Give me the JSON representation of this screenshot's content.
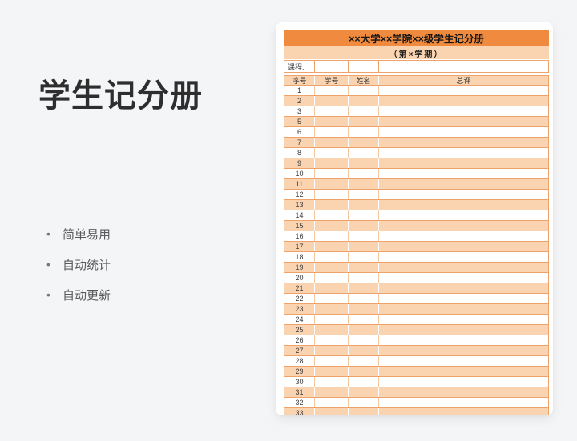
{
  "left_panel": {
    "title": "学生记分册",
    "bullet_glyph": "•",
    "features": [
      {
        "label": "简单易用"
      },
      {
        "label": "自动统计"
      },
      {
        "label": "自动更新"
      }
    ]
  },
  "preview_card": {
    "table": {
      "title": "××大学××学院××级学生记分册",
      "subtitle": "（第×学期）",
      "course_label": "课程:",
      "columns": [
        "序号",
        "学号",
        "姓名",
        "总评"
      ],
      "rows": [
        "1",
        "2",
        "3",
        "5",
        "6",
        "7",
        "8",
        "9",
        "10",
        "11",
        "12",
        "13",
        "14",
        "15",
        "16",
        "17",
        "18",
        "19",
        "20",
        "21",
        "22",
        "23",
        "24",
        "25",
        "26",
        "27",
        "28",
        "29",
        "30",
        "31",
        "32",
        "33"
      ],
      "colors": {
        "header_bg": "#EF8A3E",
        "band_bg": "#FAD3B0",
        "grid_line": "#EFA26A",
        "page_bg": "#F4F5F7"
      }
    }
  }
}
